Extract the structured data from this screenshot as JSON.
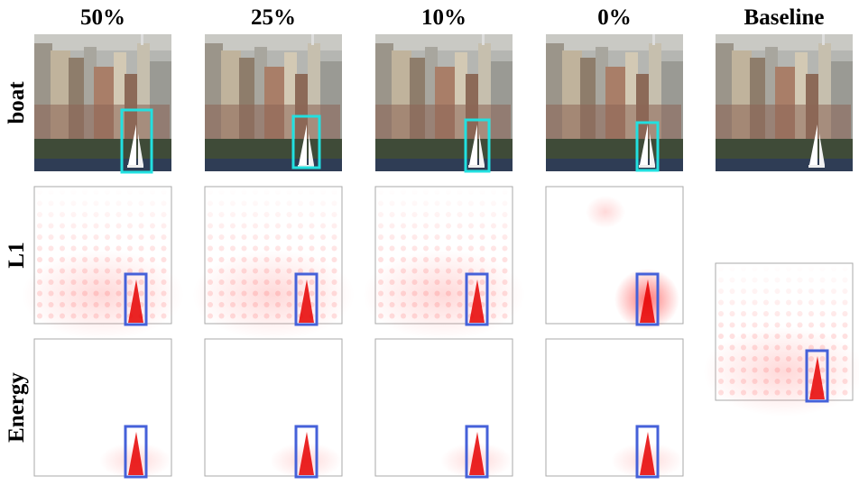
{
  "columns": [
    "50%",
    "25%",
    "10%",
    "0%",
    "Baseline"
  ],
  "rows": [
    "boat",
    "L1",
    "Energy"
  ]
}
